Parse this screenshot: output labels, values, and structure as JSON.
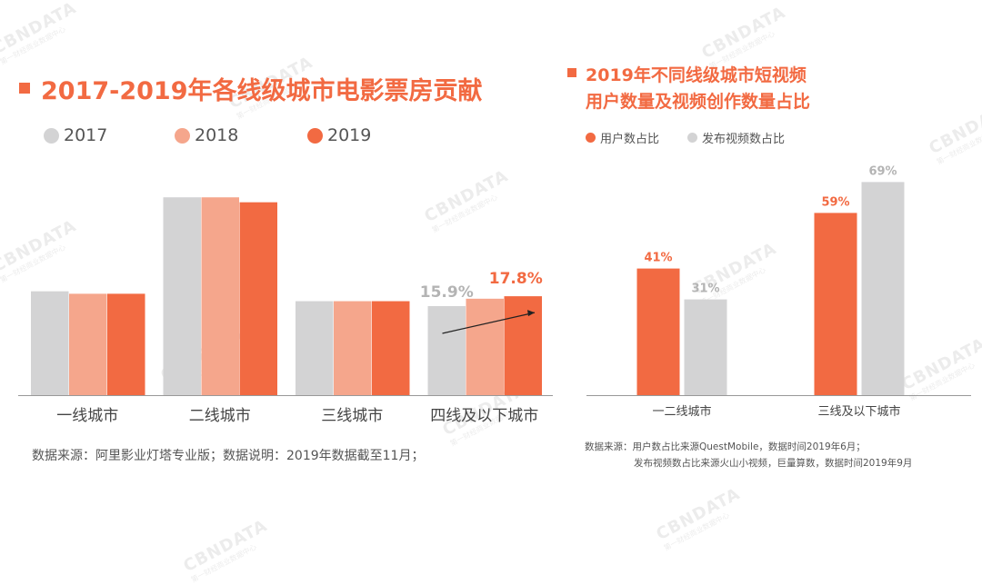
{
  "watermark": {
    "brand": "CBNDATA",
    "sub": "第一财经商业数据中心"
  },
  "left": {
    "title": "2017-2019年各线级城市电影票房贡献",
    "legend": [
      "2017",
      "2018",
      "2019"
    ],
    "source": "数据来源：阿里影业灯塔专业版；数据说明：2019年数据截至11月；"
  },
  "right": {
    "title_line1": "2019年不同线级城市短视频",
    "title_line2": "用户数量及视频创作数量占比",
    "legend": [
      "用户数占比",
      "发布视频数占比"
    ],
    "source_line1": "数据来源：用户数占比来源QuestMobile，数据时间2019年6月；",
    "source_line2": "发布视频数占比来源火山小视频，巨量算数，数据时间2019年9月"
  },
  "colors": {
    "c2017": "#d3d3d4",
    "c2018": "#f5a68c",
    "c2019": "#f26a42",
    "accent": "#f26a42",
    "grey_label": "#b4b4b4"
  },
  "chart_data": [
    {
      "type": "bar",
      "title": "2017-2019年各线级城市电影票房贡献",
      "categories": [
        "一线城市",
        "二线城市",
        "三线城市",
        "四线及以下城市"
      ],
      "series": [
        {
          "name": "2017",
          "values": [
            21,
            40,
            19,
            18
          ]
        },
        {
          "name": "2018",
          "values": [
            20.5,
            40,
            19,
            19.5
          ]
        },
        {
          "name": "2019",
          "values": [
            20.5,
            39,
            19,
            20
          ]
        }
      ],
      "annotations": [
        "15.9%",
        "17.8%"
      ],
      "ylim": [
        0,
        45
      ],
      "legend_position": "top-left"
    },
    {
      "type": "bar",
      "title": "2019年不同线级城市短视频 用户数量及视频创作数量占比",
      "categories": [
        "一二线城市",
        "三线及以下城市"
      ],
      "series": [
        {
          "name": "用户数占比",
          "values": [
            41,
            59
          ],
          "labels": [
            "41%",
            "59%"
          ]
        },
        {
          "name": "发布视频数占比",
          "values": [
            31,
            69
          ],
          "labels": [
            "31%",
            "69%"
          ]
        }
      ],
      "ylim": [
        0,
        75
      ],
      "legend_position": "top-left"
    }
  ]
}
